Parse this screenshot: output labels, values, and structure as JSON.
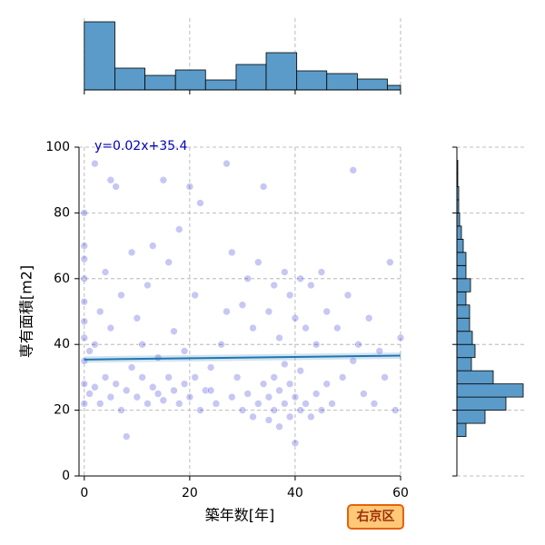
{
  "chart_data": [
    {
      "type": "scatter",
      "annotation": "y=0.02x+35.4",
      "xlabel": "築年数[年]",
      "ylabel": "専有面積[m2]",
      "color": "#0000cd",
      "trend_color": "#1f77b4",
      "annotation_color": "#0000bb",
      "xlim": [
        -1,
        60
      ],
      "ylim": [
        0,
        100
      ],
      "xticks": [
        0,
        20,
        40,
        60
      ],
      "yticks": [
        0,
        20,
        40,
        60,
        80,
        100
      ],
      "grid": true,
      "x": [
        0,
        0,
        0,
        0,
        0,
        0,
        0,
        0,
        0,
        0,
        1,
        1,
        2,
        2,
        3,
        3,
        4,
        4,
        5,
        5,
        5,
        6,
        6,
        7,
        7,
        8,
        8,
        9,
        9,
        10,
        10,
        11,
        11,
        12,
        12,
        13,
        13,
        14,
        14,
        15,
        15,
        16,
        16,
        17,
        17,
        18,
        18,
        19,
        19,
        20,
        20,
        21,
        21,
        22,
        22,
        23,
        24,
        25,
        26,
        27,
        28,
        28,
        29,
        30,
        30,
        31,
        31,
        32,
        32,
        33,
        33,
        34,
        34,
        35,
        35,
        35,
        36,
        36,
        36,
        37,
        37,
        37,
        38,
        38,
        38,
        39,
        39,
        39,
        40,
        40,
        40,
        41,
        41,
        41,
        42,
        42,
        43,
        43,
        44,
        44,
        45,
        45,
        46,
        46,
        47,
        48,
        49,
        50,
        51,
        52,
        53,
        54,
        55,
        56,
        57,
        58,
        59,
        60,
        2,
        27,
        51,
        24
      ],
      "values": [
        22,
        28,
        35,
        42,
        47,
        53,
        60,
        66,
        70,
        80,
        25,
        38,
        27,
        95,
        22,
        50,
        30,
        62,
        24,
        45,
        90,
        28,
        88,
        20,
        55,
        26,
        12,
        33,
        68,
        24,
        48,
        30,
        40,
        22,
        58,
        27,
        70,
        25,
        36,
        23,
        90,
        30,
        65,
        26,
        44,
        22,
        75,
        28,
        38,
        24,
        88,
        30,
        55,
        20,
        83,
        26,
        33,
        22,
        40,
        95,
        24,
        68,
        30,
        20,
        52,
        25,
        60,
        18,
        45,
        22,
        65,
        28,
        88,
        17,
        24,
        50,
        20,
        30,
        58,
        15,
        26,
        42,
        22,
        34,
        62,
        18,
        28,
        55,
        10,
        24,
        48,
        20,
        32,
        60,
        22,
        45,
        18,
        58,
        25,
        40,
        20,
        62,
        28,
        50,
        22,
        45,
        30,
        55,
        93,
        40,
        25,
        48,
        22,
        38,
        30,
        65,
        20,
        42,
        40,
        50,
        35,
        26
      ],
      "trendline": {
        "x": [
          0,
          60
        ],
        "values": [
          35.4,
          36.6
        ]
      }
    },
    {
      "type": "histogram",
      "orientation": "vertical",
      "color": "#5a9bc9",
      "bins": [
        0,
        5.8,
        11.5,
        17.3,
        23,
        28.8,
        34.5,
        40.3,
        46,
        51.8,
        57.5,
        60
      ],
      "values": [
        150,
        48,
        32,
        44,
        22,
        56,
        82,
        42,
        36,
        24,
        10
      ],
      "xlim": [
        -1,
        60
      ],
      "xticks": [
        0,
        20,
        40,
        60
      ],
      "ylim": [
        0,
        150
      ],
      "grid": true
    },
    {
      "type": "histogram",
      "orientation": "horizontal",
      "color": "#5a9bc9",
      "bins": [
        12,
        16,
        20,
        24,
        28,
        32,
        36,
        40,
        44,
        48,
        52,
        56,
        60,
        64,
        68,
        72,
        76,
        80,
        84,
        88,
        92,
        96
      ],
      "values": [
        20,
        62,
        108,
        146,
        80,
        32,
        40,
        34,
        28,
        28,
        20,
        30,
        20,
        20,
        14,
        10,
        6,
        4,
        4,
        2,
        2
      ],
      "ylim": [
        0,
        100
      ],
      "yticks": [
        0,
        20,
        40,
        60,
        80,
        100
      ],
      "xlim": [
        0,
        150
      ],
      "grid": true
    }
  ],
  "badge": "右京区"
}
